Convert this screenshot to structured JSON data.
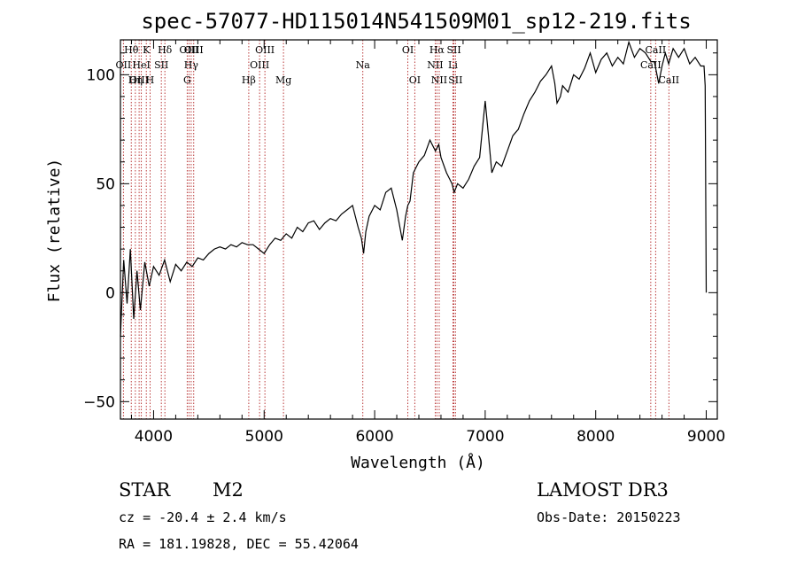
{
  "chart_data": {
    "type": "line",
    "title": "spec-57077-HD115014N541509M01_sp12-219.fits",
    "xlabel": "Wavelength (Å)",
    "ylabel": "Flux (relative)",
    "xlim": [
      3700,
      9100
    ],
    "ylim": [
      -58,
      116
    ],
    "xticks": [
      4000,
      5000,
      6000,
      7000,
      8000,
      9000
    ],
    "yticks": [
      -50,
      0,
      50,
      100
    ],
    "series": [
      {
        "name": "spectrum",
        "x": [
          3700,
          3730,
          3760,
          3790,
          3820,
          3850,
          3880,
          3920,
          3960,
          4000,
          4050,
          4100,
          4150,
          4200,
          4250,
          4300,
          4350,
          4400,
          4450,
          4500,
          4550,
          4600,
          4650,
          4700,
          4750,
          4800,
          4850,
          4900,
          4950,
          5000,
          5050,
          5100,
          5150,
          5200,
          5250,
          5300,
          5350,
          5400,
          5450,
          5500,
          5550,
          5600,
          5650,
          5700,
          5750,
          5800,
          5850,
          5880,
          5900,
          5920,
          5950,
          6000,
          6050,
          6100,
          6150,
          6200,
          6250,
          6280,
          6300,
          6320,
          6350,
          6400,
          6450,
          6500,
          6550,
          6580,
          6600,
          6650,
          6700,
          6720,
          6750,
          6800,
          6850,
          6900,
          6950,
          7000,
          7030,
          7060,
          7100,
          7150,
          7200,
          7250,
          7300,
          7350,
          7400,
          7450,
          7500,
          7550,
          7600,
          7630,
          7650,
          7680,
          7700,
          7750,
          7800,
          7850,
          7900,
          7950,
          8000,
          8050,
          8100,
          8150,
          8200,
          8250,
          8300,
          8350,
          8400,
          8450,
          8500,
          8530,
          8550,
          8570,
          8600,
          8630,
          8660,
          8700,
          8750,
          8800,
          8850,
          8900,
          8950,
          8980,
          8990,
          9000
        ],
        "y": [
          -20,
          15,
          -5,
          20,
          -12,
          10,
          -8,
          14,
          3,
          12,
          8,
          15,
          5,
          13,
          10,
          14,
          12,
          16,
          15,
          18,
          20,
          21,
          20,
          22,
          21,
          23,
          22,
          22,
          20,
          18,
          22,
          25,
          24,
          27,
          25,
          30,
          28,
          32,
          33,
          29,
          32,
          34,
          33,
          36,
          38,
          40,
          30,
          25,
          18,
          28,
          35,
          40,
          38,
          46,
          48,
          38,
          24,
          35,
          40,
          42,
          55,
          60,
          63,
          70,
          65,
          68,
          62,
          55,
          50,
          46,
          50,
          48,
          52,
          58,
          62,
          88,
          72,
          55,
          60,
          58,
          65,
          72,
          75,
          82,
          88,
          92,
          97,
          100,
          104,
          96,
          87,
          90,
          95,
          92,
          100,
          98,
          103,
          110,
          101,
          107,
          110,
          104,
          108,
          105,
          115,
          108,
          112,
          110,
          106,
          106,
          101,
          96,
          104,
          110,
          105,
          112,
          108,
          112,
          105,
          108,
          104,
          104,
          95,
          0
        ]
      }
    ],
    "line_markers": [
      {
        "name": "OII",
        "x": 3727,
        "row": 1
      },
      {
        "name": "Hθ",
        "x": 3798,
        "row": 0
      },
      {
        "name": "Hη",
        "x": 3835,
        "row": 2
      },
      {
        "name": "OIII",
        "x": 3869,
        "row": 2
      },
      {
        "name": "HeI",
        "x": 3889,
        "row": 1
      },
      {
        "name": "K",
        "x": 3934,
        "row": 0
      },
      {
        "name": "H",
        "x": 3968,
        "row": 2
      },
      {
        "name": "SII",
        "x": 4070,
        "row": 1
      },
      {
        "name": "Hδ",
        "x": 4102,
        "row": 0
      },
      {
        "name": "G",
        "x": 4304,
        "row": 2
      },
      {
        "name": "OIII",
        "x": 4320,
        "row": 0
      },
      {
        "name": "Hγ",
        "x": 4340,
        "row": 1
      },
      {
        "name": "OIII",
        "x": 4363,
        "row": 0
      },
      {
        "name": "Hβ",
        "x": 4861,
        "row": 2
      },
      {
        "name": "OIII",
        "x": 4959,
        "row": 1
      },
      {
        "name": "OIII",
        "x": 5007,
        "row": 0
      },
      {
        "name": "Mg",
        "x": 5175,
        "row": 2
      },
      {
        "name": "Na",
        "x": 5893,
        "row": 1
      },
      {
        "name": "OI",
        "x": 6300,
        "row": 0
      },
      {
        "name": "OI",
        "x": 6363,
        "row": 2
      },
      {
        "name": "NII",
        "x": 6548,
        "row": 1
      },
      {
        "name": "Hα",
        "x": 6563,
        "row": 0
      },
      {
        "name": "NII",
        "x": 6584,
        "row": 2
      },
      {
        "name": "SII",
        "x": 6717,
        "row": 0
      },
      {
        "name": "Li",
        "x": 6708,
        "row": 1
      },
      {
        "name": "SII",
        "x": 6731,
        "row": 2
      },
      {
        "name": "CaII",
        "x": 8498,
        "row": 1
      },
      {
        "name": "CaII",
        "x": 8542,
        "row": 0
      },
      {
        "name": "CaII",
        "x": 8662,
        "row": 2
      }
    ]
  },
  "info": {
    "object_class": "STAR",
    "subclass": "M2",
    "redshift": "cz = -20.4 ± 2.4 km/s",
    "coords": "RA = 181.19828, DEC =  55.42064",
    "survey": "LAMOST DR3",
    "obs_date": "Obs-Date: 20150223"
  },
  "colors": {
    "spectrum": "#000000",
    "line_marker": "#b22222",
    "axis": "#000000"
  }
}
